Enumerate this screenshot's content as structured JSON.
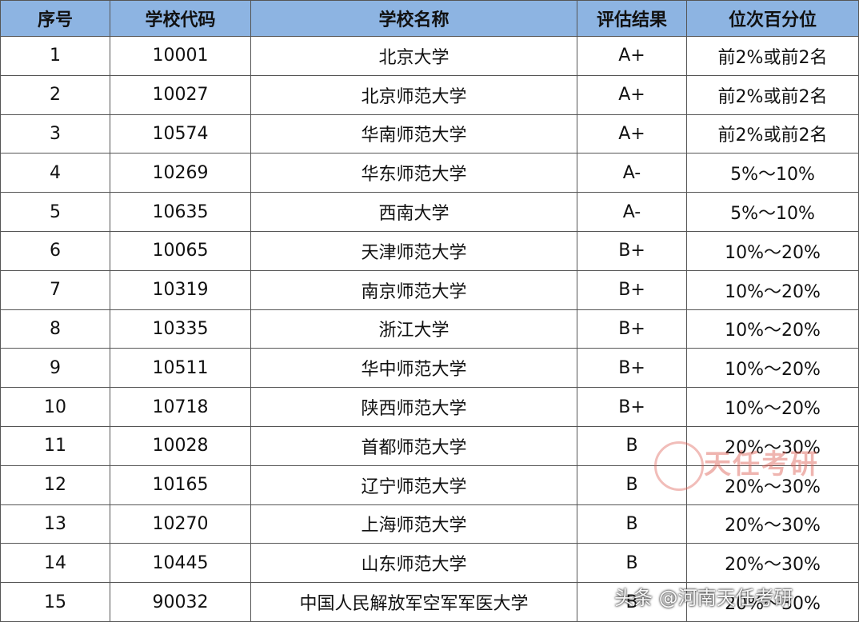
{
  "table": {
    "header": [
      "序号",
      "学校代码",
      "学校名称",
      "评估结果",
      "位次百分位"
    ],
    "rows": [
      [
        "1",
        "10001",
        "北京大学",
        "A+",
        "前2%或前2名"
      ],
      [
        "2",
        "10027",
        "北京师范大学",
        "A+",
        "前2%或前2名"
      ],
      [
        "3",
        "10574",
        "华南师范大学",
        "A+",
        "前2%或前2名"
      ],
      [
        "4",
        "10269",
        "华东师范大学",
        "A-",
        "5%～10%"
      ],
      [
        "5",
        "10635",
        "西南大学",
        "A-",
        "5%～10%"
      ],
      [
        "6",
        "10065",
        "天津师范大学",
        "B+",
        "10%～20%"
      ],
      [
        "7",
        "10319",
        "南京师范大学",
        "B+",
        "10%～20%"
      ],
      [
        "8",
        "10335",
        "浙江大学",
        "B+",
        "10%～20%"
      ],
      [
        "9",
        "10511",
        "华中师范大学",
        "B+",
        "10%～20%"
      ],
      [
        "10",
        "10718",
        "陕西师范大学",
        "B+",
        "10%～20%"
      ],
      [
        "11",
        "10028",
        "首都师范大学",
        "B",
        "20%～30%"
      ],
      [
        "12",
        "10165",
        "辽宁师范大学",
        "B",
        "20%～30%"
      ],
      [
        "13",
        "10270",
        "上海师范大学",
        "B",
        "20%～30%"
      ],
      [
        "14",
        "10445",
        "山东师范大学",
        "B",
        "20%～30%"
      ],
      [
        "15",
        "90032",
        "中国人民解放军空军军医大学",
        "B",
        "20%～30%"
      ]
    ]
  },
  "watermark": {
    "logo_text": "天任考研",
    "credit": "头条 @河南天任考研"
  }
}
